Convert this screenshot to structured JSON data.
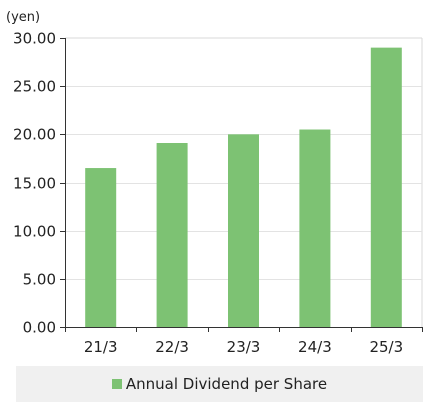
{
  "chart_data": {
    "type": "bar",
    "unit_label": "(yen)",
    "categories": [
      "21/3",
      "22/3",
      "23/3",
      "24/3",
      "25/3"
    ],
    "series": [
      {
        "name": "Annual Dividend per Share",
        "values": [
          16.5,
          19.1,
          20.0,
          20.5,
          29.0
        ],
        "color": "#7dc273"
      }
    ],
    "ylim": [
      0,
      30
    ],
    "y_ticks": [
      "0.00",
      "5.00",
      "10.00",
      "15.00",
      "20.00",
      "25.00",
      "30.00"
    ],
    "grid": true,
    "legend_position": "bottom",
    "legend_background": "#f0f0f0"
  }
}
